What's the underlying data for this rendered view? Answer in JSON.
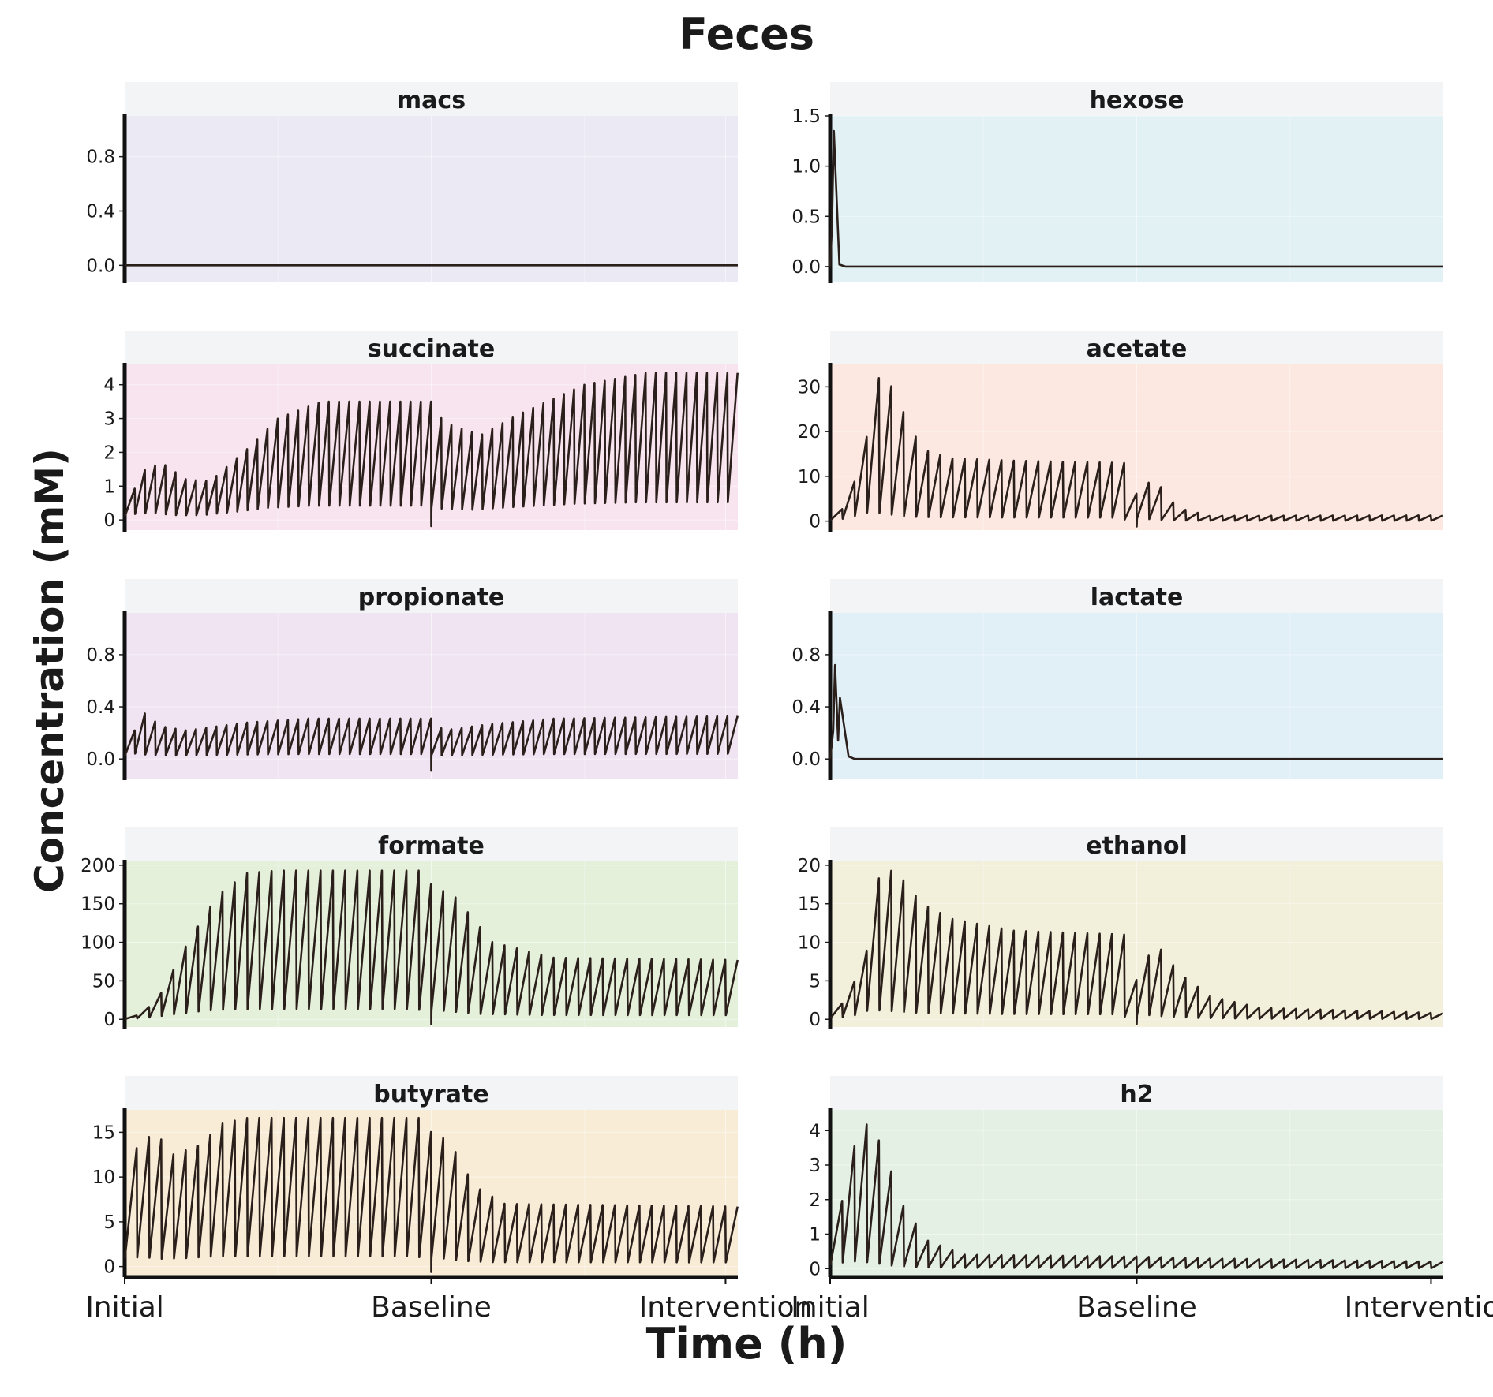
{
  "title": "Feces",
  "xlabel": "Time (h)",
  "ylabel": "Concentration (mM)",
  "x_tick_labels": [
    "Initial",
    "Baseline",
    "Intervention"
  ],
  "chart_data": [
    {
      "type": "line",
      "title": "macs",
      "color": "#ebe9f4",
      "yticks": [
        0.0,
        0.4,
        0.8
      ],
      "ytick_labels": [
        "0.0",
        "0.4",
        "0.8"
      ],
      "ylim": [
        -0.12,
        1.1
      ],
      "shape": {
        "kind": "flat"
      }
    },
    {
      "type": "line",
      "title": "hexose",
      "color": "#e1f1f4",
      "yticks": [
        0.0,
        0.5,
        1.0,
        1.5
      ],
      "ytick_labels": [
        "0.0",
        "0.5",
        "1.0",
        "1.5"
      ],
      "ylim": [
        -0.15,
        1.5
      ],
      "shape": {
        "kind": "early_spike",
        "peaks": [
          1.35
        ],
        "peak_positions": [
          0.006
        ],
        "decay_end": 0.015
      }
    },
    {
      "type": "line",
      "title": "succinate",
      "color": "#f7e4ee",
      "yticks": [
        0,
        1,
        2,
        3,
        4
      ],
      "ytick_labels": [
        "0",
        "1",
        "2",
        "3",
        "4"
      ],
      "ylim": [
        -0.3,
        4.6
      ],
      "shape": {
        "kind": "sawtooth",
        "cycles": 60,
        "offset": 0.12,
        "dips": [
          0.5
        ],
        "envelope": [
          [
            0,
            0.3
          ],
          [
            0.03,
            1.45
          ],
          [
            0.06,
            1.7
          ],
          [
            0.1,
            1.2
          ],
          [
            0.14,
            1.15
          ],
          [
            0.2,
            2.1
          ],
          [
            0.25,
            3.0
          ],
          [
            0.32,
            3.5
          ],
          [
            0.5,
            3.5
          ],
          [
            0.52,
            2.9
          ],
          [
            0.58,
            2.5
          ],
          [
            0.64,
            3.1
          ],
          [
            0.75,
            4.0
          ],
          [
            0.85,
            4.35
          ],
          [
            1.0,
            4.35
          ]
        ]
      }
    },
    {
      "type": "line",
      "title": "acetate",
      "color": "#fce8e1",
      "yticks": [
        0,
        10,
        20,
        30
      ],
      "ytick_labels": [
        "0",
        "10",
        "20",
        "30"
      ],
      "ylim": [
        -2,
        35
      ],
      "shape": {
        "kind": "sawtooth",
        "cycles": 50,
        "offset": 0.06,
        "dips": [
          0.5
        ],
        "envelope": [
          [
            0,
            0.2
          ],
          [
            0.03,
            4
          ],
          [
            0.06,
            19
          ],
          [
            0.075,
            31.5
          ],
          [
            0.09,
            33
          ],
          [
            0.11,
            27
          ],
          [
            0.15,
            16
          ],
          [
            0.2,
            14
          ],
          [
            0.3,
            13.5
          ],
          [
            0.48,
            13
          ],
          [
            0.5,
            6
          ],
          [
            0.53,
            10
          ],
          [
            0.55,
            5
          ],
          [
            0.58,
            2.5
          ],
          [
            0.62,
            1.2
          ],
          [
            1.0,
            1.3
          ]
        ]
      }
    },
    {
      "type": "line",
      "title": "propionate",
      "color": "#f0e4f2",
      "yticks": [
        0.0,
        0.4,
        0.8
      ],
      "ytick_labels": [
        "0.0",
        "0.4",
        "0.8"
      ],
      "ylim": [
        -0.15,
        1.12
      ],
      "shape": {
        "kind": "sawtooth",
        "cycles": 60,
        "offset": 0.12,
        "dips": [
          0.5
        ],
        "envelope": [
          [
            0,
            0.05
          ],
          [
            0.03,
            0.36
          ],
          [
            0.06,
            0.25
          ],
          [
            0.1,
            0.22
          ],
          [
            0.2,
            0.28
          ],
          [
            0.3,
            0.31
          ],
          [
            0.5,
            0.31
          ],
          [
            0.52,
            0.22
          ],
          [
            0.6,
            0.27
          ],
          [
            0.7,
            0.31
          ],
          [
            1.0,
            0.33
          ]
        ]
      }
    },
    {
      "type": "line",
      "title": "lactate",
      "color": "#e1eff7",
      "yticks": [
        0.0,
        0.4,
        0.8
      ],
      "ytick_labels": [
        "0.0",
        "0.4",
        "0.8"
      ],
      "ylim": [
        -0.15,
        1.12
      ],
      "shape": {
        "kind": "early_spike",
        "peaks": [
          0.72,
          0.47
        ],
        "peak_positions": [
          0.008,
          0.016
        ],
        "decay_end": 0.03
      }
    },
    {
      "type": "line",
      "title": "formate",
      "color": "#e4f0da",
      "yticks": [
        0,
        50,
        100,
        150,
        200
      ],
      "ytick_labels": [
        "0",
        "50",
        "100",
        "150",
        "200"
      ],
      "ylim": [
        -10,
        205
      ],
      "shape": {
        "kind": "sawtooth",
        "cycles": 50,
        "offset": 0.07,
        "dips": [
          0.5
        ],
        "envelope": [
          [
            0,
            1
          ],
          [
            0.03,
            7
          ],
          [
            0.06,
            35
          ],
          [
            0.1,
            95
          ],
          [
            0.15,
            160
          ],
          [
            0.2,
            190
          ],
          [
            0.25,
            193
          ],
          [
            0.48,
            193
          ],
          [
            0.5,
            175
          ],
          [
            0.54,
            158
          ],
          [
            0.6,
            100
          ],
          [
            0.7,
            80
          ],
          [
            1.0,
            77
          ]
        ]
      }
    },
    {
      "type": "line",
      "title": "ethanol",
      "color": "#f2efda",
      "yticks": [
        0,
        5,
        10,
        15,
        20
      ],
      "ytick_labels": [
        "0",
        "5",
        "10",
        "15",
        "20"
      ],
      "ylim": [
        -1,
        20.5
      ],
      "shape": {
        "kind": "sawtooth",
        "cycles": 50,
        "offset": 0.06,
        "dips": [
          0.5
        ],
        "envelope": [
          [
            0,
            0.3
          ],
          [
            0.03,
            3
          ],
          [
            0.06,
            9
          ],
          [
            0.08,
            18.5
          ],
          [
            0.105,
            19.5
          ],
          [
            0.15,
            15
          ],
          [
            0.2,
            13
          ],
          [
            0.3,
            11.5
          ],
          [
            0.48,
            11
          ],
          [
            0.5,
            5
          ],
          [
            0.53,
            10
          ],
          [
            0.57,
            6
          ],
          [
            0.62,
            3
          ],
          [
            0.7,
            1.5
          ],
          [
            1.0,
            0.8
          ]
        ]
      }
    },
    {
      "type": "line",
      "title": "butyrate",
      "color": "#f8ecd6",
      "yticks": [
        0,
        5,
        10,
        15
      ],
      "ytick_labels": [
        "0",
        "5",
        "10",
        "15"
      ],
      "ylim": [
        -1,
        17.5
      ],
      "shape": {
        "kind": "sawtooth",
        "cycles": 50,
        "offset": 0.07,
        "dips": [
          0.5
        ],
        "envelope": [
          [
            0,
            0.3
          ],
          [
            0.02,
            13.5
          ],
          [
            0.05,
            15
          ],
          [
            0.08,
            12.5
          ],
          [
            0.12,
            13.5
          ],
          [
            0.16,
            16
          ],
          [
            0.2,
            16.6
          ],
          [
            0.48,
            16.6
          ],
          [
            0.5,
            15
          ],
          [
            0.53,
            14
          ],
          [
            0.57,
            9
          ],
          [
            0.62,
            7
          ],
          [
            1.0,
            6.7
          ]
        ]
      }
    },
    {
      "type": "line",
      "title": "h2",
      "color": "#e3f0e3",
      "yticks": [
        0,
        1,
        2,
        3,
        4
      ],
      "ytick_labels": [
        "0",
        "1",
        "2",
        "3",
        "4"
      ],
      "ylim": [
        -0.2,
        4.6
      ],
      "shape": {
        "kind": "sawtooth",
        "cycles": 50,
        "offset": 0.05,
        "dips": [
          0.5
        ],
        "envelope": [
          [
            0,
            0.2
          ],
          [
            0.03,
            2.9
          ],
          [
            0.05,
            4.25
          ],
          [
            0.07,
            4.1
          ],
          [
            0.09,
            3.3
          ],
          [
            0.12,
            1.8
          ],
          [
            0.16,
            0.8
          ],
          [
            0.22,
            0.4
          ],
          [
            0.5,
            0.35
          ],
          [
            0.6,
            0.3
          ],
          [
            1.0,
            0.2
          ]
        ]
      }
    }
  ]
}
